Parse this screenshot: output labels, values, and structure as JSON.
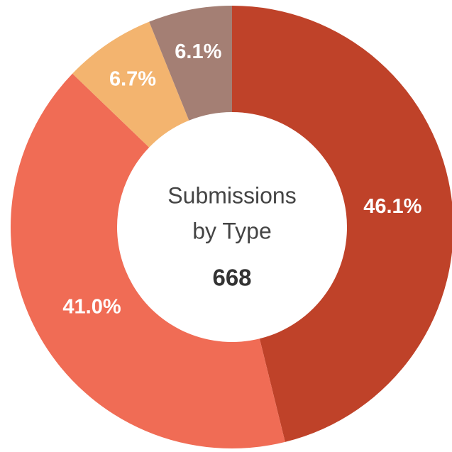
{
  "chart_data": {
    "type": "donut",
    "title": "Submissions by Type",
    "total": 668,
    "values": [
      46.1,
      41.0,
      6.7,
      6.1
    ],
    "value_labels": [
      "46.1%",
      "41.0%",
      "6.7%",
      "6.1%"
    ],
    "colors": [
      "#bf4229",
      "#f06c55",
      "#f3b46f",
      "#a47f74"
    ]
  }
}
